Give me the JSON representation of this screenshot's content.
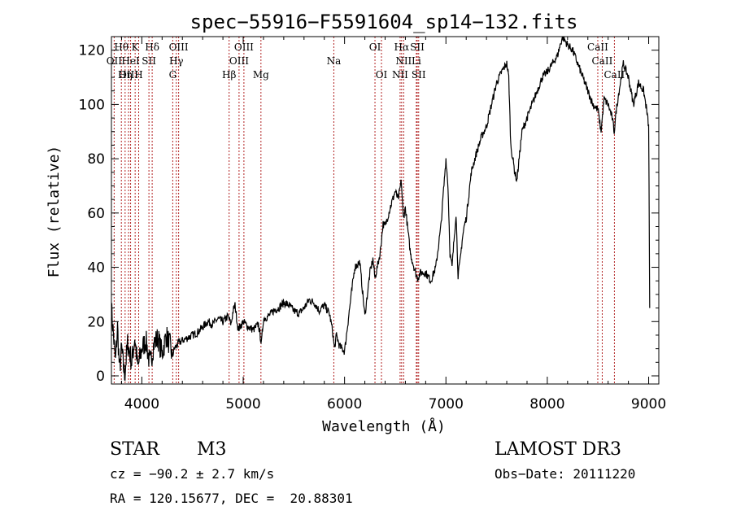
{
  "chart_data": {
    "type": "line",
    "title": "spec−55916−F5591604_sp14−132.fits",
    "xlabel": "Wavelength (Å)",
    "ylabel": "Flux (relative)",
    "xlim": [
      3700,
      9100
    ],
    "ylim": [
      -3,
      125
    ],
    "xticks": [
      4000,
      5000,
      6000,
      7000,
      8000,
      9000
    ],
    "yticks": [
      0,
      20,
      40,
      60,
      80,
      100,
      120
    ],
    "grid": false,
    "series": [
      {
        "name": "spectrum",
        "x": [
          3700,
          3720,
          3740,
          3760,
          3780,
          3800,
          3830,
          3860,
          3900,
          3930,
          3960,
          4000,
          4040,
          4080,
          4120,
          4160,
          4200,
          4240,
          4280,
          4300,
          4320,
          4360,
          4400,
          4450,
          4500,
          4550,
          4600,
          4650,
          4700,
          4750,
          4800,
          4850,
          4880,
          4900,
          4920,
          4950,
          5000,
          5050,
          5100,
          5150,
          5180,
          5200,
          5250,
          5300,
          5350,
          5400,
          5450,
          5500,
          5550,
          5600,
          5650,
          5700,
          5750,
          5800,
          5850,
          5880,
          5900,
          5920,
          5950,
          6000,
          6050,
          6100,
          6150,
          6180,
          6200,
          6250,
          6280,
          6300,
          6350,
          6380,
          6400,
          6450,
          6500,
          6530,
          6560,
          6580,
          6600,
          6650,
          6700,
          6720,
          6750,
          6800,
          6850,
          6900,
          6950,
          7000,
          7020,
          7040,
          7060,
          7080,
          7100,
          7120,
          7140,
          7160,
          7180,
          7200,
          7250,
          7300,
          7350,
          7400,
          7450,
          7500,
          7550,
          7580,
          7600,
          7620,
          7640,
          7660,
          7680,
          7700,
          7750,
          7800,
          7850,
          7900,
          7950,
          8000,
          8050,
          8100,
          8150,
          8200,
          8250,
          8300,
          8350,
          8400,
          8450,
          8500,
          8530,
          8560,
          8600,
          8640,
          8660,
          8680,
          8700,
          8750,
          8800,
          8850,
          8900,
          8950,
          8980,
          9000,
          9010
        ],
        "y": [
          25,
          15,
          5,
          18,
          2,
          10,
          0,
          12,
          5,
          14,
          3,
          10,
          13,
          4,
          12,
          14,
          8,
          15,
          11,
          7,
          10,
          12,
          13,
          14,
          15,
          16,
          18,
          20,
          19,
          21,
          20,
          22,
          19,
          24,
          26,
          17,
          20,
          18,
          17,
          19,
          12,
          21,
          22,
          24,
          25,
          27,
          26,
          24,
          23,
          25,
          28,
          27,
          24,
          26,
          23,
          17,
          10,
          15,
          11,
          9,
          25,
          40,
          42,
          30,
          22,
          38,
          43,
          36,
          45,
          56,
          55,
          62,
          68,
          65,
          72,
          58,
          62,
          45,
          38,
          36,
          38,
          38,
          35,
          40,
          55,
          80,
          70,
          45,
          40,
          50,
          60,
          37,
          42,
          50,
          55,
          58,
          75,
          82,
          88,
          92,
          100,
          108,
          112,
          114,
          115,
          110,
          85,
          80,
          75,
          72,
          90,
          95,
          100,
          105,
          110,
          112,
          115,
          118,
          125,
          122,
          120,
          115,
          110,
          105,
          100,
          98,
          90,
          102,
          100,
          95,
          90,
          98,
          103,
          115,
          110,
          100,
          108,
          105,
          98,
          92,
          25
        ]
      }
    ],
    "lines": [
      {
        "label": "Hθ",
        "x": 3798
      },
      {
        "label": "OII",
        "x": 3727
      },
      {
        "label": "OIII",
        "x": 3869
      },
      {
        "label": "HeI",
        "x": 3889
      },
      {
        "label": "K",
        "x": 3934
      },
      {
        "label": "H",
        "x": 3969
      },
      {
        "label": "Hη",
        "x": 3835
      },
      {
        "label": "SII",
        "x": 4070
      },
      {
        "label": "Hδ",
        "x": 4102
      },
      {
        "label": "Hγ",
        "x": 4340
      },
      {
        "label": "G",
        "x": 4305
      },
      {
        "label": "OIII",
        "x": 4363
      },
      {
        "label": "Hβ",
        "x": 4861
      },
      {
        "label": "OIII",
        "x": 4959
      },
      {
        "label": "OIII",
        "x": 5007
      },
      {
        "label": "Mg",
        "x": 5175
      },
      {
        "label": "Na",
        "x": 5894
      },
      {
        "label": "OI",
        "x": 6300
      },
      {
        "label": "OI",
        "x": 6364
      },
      {
        "label": "NII",
        "x": 6548
      },
      {
        "label": "Hα",
        "x": 6563
      },
      {
        "label": "NII",
        "x": 6583
      },
      {
        "label": "Li",
        "x": 6708
      },
      {
        "label": "SII",
        "x": 6717
      },
      {
        "label": "SII",
        "x": 6731
      },
      {
        "label": "CaII",
        "x": 8498
      },
      {
        "label": "CaII",
        "x": 8542
      },
      {
        "label": "CaII",
        "x": 8662
      }
    ],
    "labels": [
      {
        "text": "Hθ",
        "row": 1,
        "x": 3798
      },
      {
        "text": "K",
        "row": 1,
        "x": 3934
      },
      {
        "text": "Hδ",
        "row": 1,
        "x": 4102
      },
      {
        "text": "OIII",
        "row": 1,
        "x": 4363
      },
      {
        "text": "OIII",
        "row": 1,
        "x": 5007
      },
      {
        "text": "OI",
        "row": 1,
        "x": 6300
      },
      {
        "text": "Hα",
        "row": 1,
        "x": 6563
      },
      {
        "text": "SII",
        "row": 1,
        "x": 6717
      },
      {
        "text": "CaII",
        "row": 1,
        "x": 8498
      },
      {
        "text": "OII",
        "row": 2,
        "x": 3727
      },
      {
        "text": "HeI",
        "row": 2,
        "x": 3889
      },
      {
        "text": "SII",
        "row": 2,
        "x": 4070
      },
      {
        "text": "Hγ",
        "row": 2,
        "x": 4340
      },
      {
        "text": "OIII",
        "row": 2,
        "x": 4959
      },
      {
        "text": "Na",
        "row": 2,
        "x": 5894
      },
      {
        "text": "NII",
        "row": 2,
        "x": 6583
      },
      {
        "text": "Li",
        "row": 2,
        "x": 6708
      },
      {
        "text": "CaII",
        "row": 2,
        "x": 8542
      },
      {
        "text": "OIII",
        "row": 3,
        "x": 3869
      },
      {
        "text": "Hη",
        "row": 3,
        "x": 3835
      },
      {
        "text": "H",
        "row": 3,
        "x": 3969
      },
      {
        "text": "G",
        "row": 3,
        "x": 4305
      },
      {
        "text": "Hβ",
        "row": 3,
        "x": 4861
      },
      {
        "text": "Mg",
        "row": 3,
        "x": 5175
      },
      {
        "text": "OI",
        "row": 3,
        "x": 6364
      },
      {
        "text": "NII",
        "row": 3,
        "x": 6548
      },
      {
        "text": "SII",
        "row": 3,
        "x": 6731
      },
      {
        "text": "CaII",
        "row": 3,
        "x": 8662
      }
    ]
  },
  "info": {
    "object_class": "STAR",
    "subclass": "M3",
    "survey": "LAMOST DR3",
    "cz": "cz = −90.2 ± 2.7 km/s",
    "obs_date": "Obs−Date: 20111220",
    "radec": "RA = 120.15677, DEC =  20.88301"
  },
  "colors": {
    "line": "#000000",
    "marker": "#b22222",
    "background": "#ffffff"
  }
}
